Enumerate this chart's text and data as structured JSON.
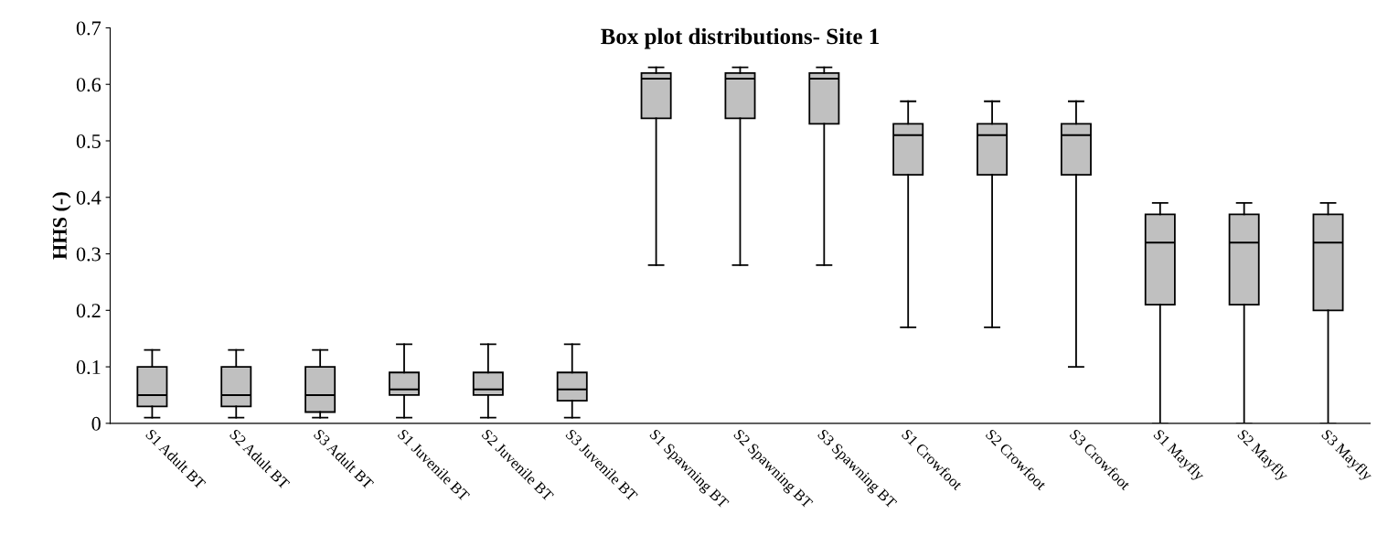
{
  "chart_data": {
    "type": "box",
    "title": "Box plot distributions- Site 1",
    "ylabel": "HHS (-)",
    "categories": [
      "S1 Adult BT",
      "S2 Adult BT",
      "S3 Adult BT",
      "S1 Juvenile BT",
      "S2 Juvenile BT",
      "S3 Juvenile BT",
      "S1 Spawning BT",
      "S2 Spawning BT",
      "S3 Spawning BT",
      "S1 Crowfoot",
      "S2 Crowfoot",
      "S3 Crowfoot",
      "S1 Mayfly",
      "S2 Mayfly",
      "S3 Mayfly"
    ],
    "color": "#c0c0c0",
    "boxes": [
      {
        "low": 0.01,
        "q1": 0.03,
        "median": 0.05,
        "q3": 0.1,
        "high": 0.13
      },
      {
        "low": 0.01,
        "q1": 0.03,
        "median": 0.05,
        "q3": 0.1,
        "high": 0.13
      },
      {
        "low": 0.01,
        "q1": 0.02,
        "median": 0.05,
        "q3": 0.1,
        "high": 0.13
      },
      {
        "low": 0.01,
        "q1": 0.05,
        "median": 0.06,
        "q3": 0.09,
        "high": 0.14
      },
      {
        "low": 0.01,
        "q1": 0.05,
        "median": 0.06,
        "q3": 0.09,
        "high": 0.14
      },
      {
        "low": 0.01,
        "q1": 0.04,
        "median": 0.06,
        "q3": 0.09,
        "high": 0.14
      },
      {
        "low": 0.28,
        "q1": 0.54,
        "median": 0.61,
        "q3": 0.62,
        "high": 0.63
      },
      {
        "low": 0.28,
        "q1": 0.54,
        "median": 0.61,
        "q3": 0.62,
        "high": 0.63
      },
      {
        "low": 0.28,
        "q1": 0.53,
        "median": 0.61,
        "q3": 0.62,
        "high": 0.63
      },
      {
        "low": 0.17,
        "q1": 0.44,
        "median": 0.51,
        "q3": 0.53,
        "high": 0.57
      },
      {
        "low": 0.17,
        "q1": 0.44,
        "median": 0.51,
        "q3": 0.53,
        "high": 0.57
      },
      {
        "low": 0.1,
        "q1": 0.44,
        "median": 0.51,
        "q3": 0.53,
        "high": 0.57
      },
      {
        "low": 0,
        "q1": 0.21,
        "median": 0.32,
        "q3": 0.37,
        "high": 0.39
      },
      {
        "low": 0,
        "q1": 0.21,
        "median": 0.32,
        "q3": 0.37,
        "high": 0.39
      },
      {
        "low": 0,
        "q1": 0.2,
        "median": 0.32,
        "q3": 0.37,
        "high": 0.39
      }
    ],
    "ylim": [
      0,
      0.7
    ],
    "yticks": [
      0,
      0.1,
      0.2,
      0.3,
      0.4,
      0.5,
      0.6,
      0.7
    ],
    "grid": false,
    "legend": false
  }
}
